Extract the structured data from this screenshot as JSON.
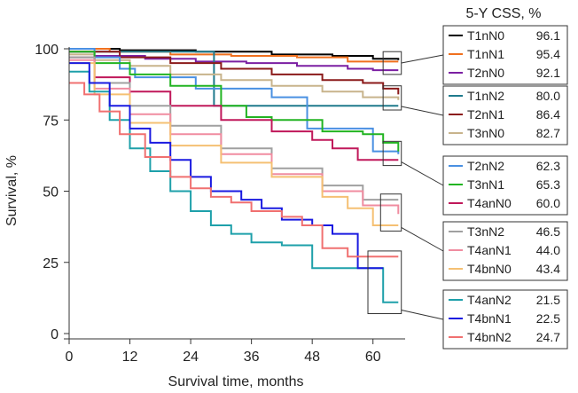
{
  "chart_data": {
    "type": "line",
    "step": true,
    "title": "",
    "xlabel": "Survival time, months",
    "ylabel": "Survival, %",
    "xlim": [
      0,
      66
    ],
    "ylim": [
      0,
      100
    ],
    "xticks": [
      0,
      12,
      24,
      36,
      48,
      60
    ],
    "yticks": [
      0,
      25,
      50,
      75,
      100
    ],
    "legend_title": "5-Y CSS, %",
    "legend_position": "right",
    "series": [
      {
        "name": "T1nN0",
        "css": "96.1",
        "color": "#000000",
        "x": [
          0,
          10,
          25,
          40,
          52,
          60,
          65
        ],
        "y": [
          100,
          99.5,
          99,
          98,
          97.5,
          96.5,
          96
        ]
      },
      {
        "name": "T1nN1",
        "css": "95.4",
        "color": "#f0701e",
        "x": [
          0,
          8,
          20,
          32,
          45,
          55,
          65
        ],
        "y": [
          100,
          99,
          98,
          97.5,
          97,
          95.5,
          95.5
        ]
      },
      {
        "name": "T2nN0",
        "css": "92.1",
        "color": "#7b1fa2",
        "x": [
          0,
          5,
          15,
          25,
          35,
          45,
          55,
          60,
          65
        ],
        "y": [
          99,
          97.5,
          96.5,
          95.5,
          95,
          94,
          93,
          92.5,
          92.5
        ]
      },
      {
        "name": "T1nN2",
        "css": "80.0",
        "color": "#1f7a8c",
        "x": [
          0,
          10,
          20,
          28,
          28.6,
          40,
          65
        ],
        "y": [
          99,
          99,
          99,
          99,
          80,
          80,
          80
        ]
      },
      {
        "name": "T2nN1",
        "css": "86.4",
        "color": "#8b1a1a",
        "x": [
          0,
          10,
          20,
          30,
          40,
          50,
          58,
          62,
          65
        ],
        "y": [
          99,
          97,
          95,
          93,
          91,
          89,
          88,
          86,
          84
        ]
      },
      {
        "name": "T3nN0",
        "css": "82.7",
        "color": "#c8b48c",
        "x": [
          0,
          5,
          12,
          20,
          30,
          40,
          50,
          58,
          65
        ],
        "y": [
          98,
          96,
          94,
          91,
          89,
          87,
          85,
          83,
          82
        ]
      },
      {
        "name": "T2nN2",
        "css": "62.3",
        "color": "#4a90e2",
        "x": [
          0,
          5,
          10,
          13,
          25,
          30,
          40,
          47,
          51,
          60,
          65
        ],
        "y": [
          100,
          97,
          93,
          90,
          86,
          86,
          83,
          72,
          72,
          64,
          63
        ]
      },
      {
        "name": "T3nN1",
        "css": "65.3",
        "color": "#22b422",
        "x": [
          0,
          5,
          12,
          20,
          30,
          35,
          40,
          50,
          58,
          62,
          65
        ],
        "y": [
          99,
          95,
          91,
          87,
          80,
          76,
          75,
          71,
          70,
          67,
          64
        ]
      },
      {
        "name": "T4anN0",
        "css": "60.0",
        "color": "#c0185a",
        "x": [
          0,
          5,
          12,
          20,
          30,
          40,
          48,
          52,
          57,
          65
        ],
        "y": [
          97,
          90,
          85,
          80,
          75,
          71,
          68,
          65,
          61,
          61
        ]
      },
      {
        "name": "T3nN2",
        "css": "46.5",
        "color": "#a0a0a0",
        "x": [
          0,
          5,
          12,
          20,
          30,
          40,
          50,
          58,
          65
        ],
        "y": [
          97,
          88,
          80,
          73,
          65,
          58,
          52,
          47,
          47
        ]
      },
      {
        "name": "T4anN1",
        "css": "44.0",
        "color": "#f08ca0",
        "x": [
          0,
          5,
          12,
          20,
          30,
          40,
          50,
          58,
          65
        ],
        "y": [
          96,
          86,
          77,
          70,
          63,
          56,
          50,
          45,
          42
        ]
      },
      {
        "name": "T4bnN0",
        "css": "43.4",
        "color": "#f5c073",
        "x": [
          0,
          5,
          12,
          20,
          30,
          40,
          50,
          55,
          60,
          65
        ],
        "y": [
          95,
          84,
          74,
          66,
          60,
          55,
          48,
          44,
          38,
          38
        ]
      },
      {
        "name": "T4anN2",
        "css": "21.5",
        "color": "#1ea0aa",
        "x": [
          0,
          4,
          8,
          12,
          16,
          20,
          24,
          28,
          32,
          36,
          42,
          48,
          52,
          58,
          62,
          65
        ],
        "y": [
          92,
          85,
          75,
          65,
          57,
          50,
          43,
          38,
          35,
          32,
          31,
          23,
          23,
          23,
          11,
          11
        ]
      },
      {
        "name": "T4bnN1",
        "css": "22.5",
        "color": "#1a1ae0",
        "x": [
          0,
          4,
          8,
          12,
          16,
          20,
          24,
          28,
          34,
          38,
          42,
          48,
          52,
          57,
          61,
          62
        ],
        "y": [
          95,
          88,
          80,
          72,
          67,
          61,
          55,
          50,
          47,
          44,
          40,
          38,
          35,
          23,
          23,
          23
        ]
      },
      {
        "name": "T4bnN2",
        "css": "24.7",
        "color": "#f07070",
        "x": [
          0,
          3,
          6,
          10,
          15,
          20,
          24,
          28,
          32,
          36,
          42,
          46,
          50,
          55,
          60,
          65
        ],
        "y": [
          88,
          84,
          78,
          70,
          62,
          55,
          51,
          48,
          46,
          43,
          41,
          38,
          30,
          27,
          27,
          27
        ]
      }
    ],
    "legend_groups": [
      [
        "T1nN0",
        "T1nN1",
        "T2nN0"
      ],
      [
        "T1nN2",
        "T2nN1",
        "T3nN0"
      ],
      [
        "T2nN2",
        "T3nN1",
        "T4anN0"
      ],
      [
        "T3nN2",
        "T4anN1",
        "T4bnN0"
      ],
      [
        "T4anN2",
        "T4bnN1",
        "T4bnN2"
      ]
    ],
    "highlight_boxes": [
      {
        "x": [
          62,
          65.6
        ],
        "y": [
          91,
          99
        ]
      },
      {
        "x": [
          62,
          65.6
        ],
        "y": [
          78.5,
          87
        ]
      },
      {
        "x": [
          62,
          65.6
        ],
        "y": [
          59,
          67.5
        ]
      },
      {
        "x": [
          61.5,
          65.6
        ],
        "y": [
          36,
          49
        ]
      },
      {
        "x": [
          59,
          65.6
        ],
        "y": [
          7,
          29
        ]
      }
    ]
  }
}
